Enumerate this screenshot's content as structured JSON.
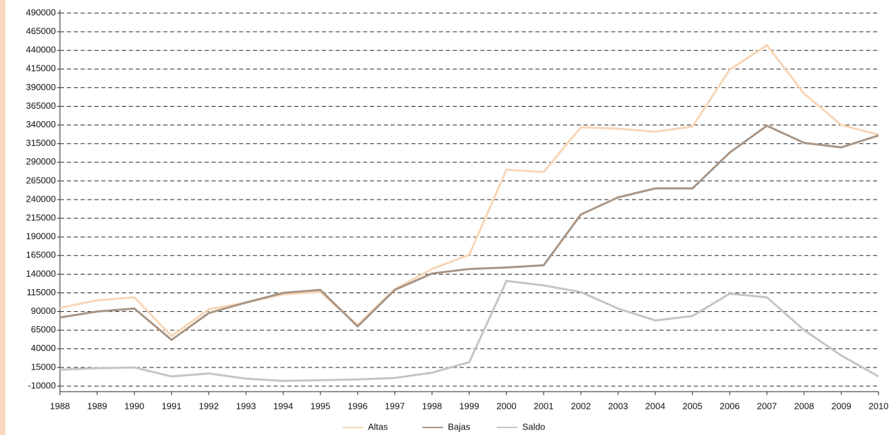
{
  "chart_data": {
    "type": "line",
    "x": [
      1988,
      1989,
      1990,
      1991,
      1992,
      1993,
      1994,
      1995,
      1996,
      1997,
      1998,
      1999,
      2000,
      2001,
      2002,
      2003,
      2004,
      2005,
      2006,
      2007,
      2008,
      2009,
      2010
    ],
    "xlim": [
      1988,
      2010
    ],
    "xticks": [
      1988,
      1989,
      1990,
      1991,
      1992,
      1993,
      1994,
      1995,
      1996,
      1997,
      1998,
      1999,
      2000,
      2001,
      2002,
      2003,
      2004,
      2005,
      2006,
      2007,
      2008,
      2009,
      2010
    ],
    "ylim": [
      -10000,
      490000
    ],
    "yticks": [
      -10000,
      15000,
      40000,
      65000,
      90000,
      115000,
      140000,
      165000,
      190000,
      215000,
      240000,
      265000,
      290000,
      315000,
      340000,
      365000,
      390000,
      415000,
      440000,
      465000,
      490000
    ],
    "grid": true,
    "legend": "bottom",
    "series": [
      {
        "name": "Altas",
        "color": "#f8d5b5",
        "values": [
          95000,
          105000,
          109000,
          57000,
          93000,
          102000,
          113000,
          116000,
          72000,
          120000,
          147000,
          166000,
          280000,
          277000,
          337000,
          335000,
          331000,
          338000,
          414000,
          447000,
          382000,
          340000,
          327000
        ]
      },
      {
        "name": "Bajas",
        "color": "#a89484",
        "values": [
          82000,
          90000,
          94000,
          52000,
          88000,
          102000,
          115000,
          119000,
          70000,
          119000,
          141000,
          147000,
          149000,
          152000,
          220000,
          243000,
          255000,
          255000,
          303000,
          339000,
          316000,
          310000,
          326000
        ]
      },
      {
        "name": "Saldo",
        "color": "#c4c4c4",
        "values": [
          12000,
          14000,
          15000,
          3000,
          7000,
          0,
          -3000,
          -2000,
          -1000,
          1000,
          8000,
          22000,
          131000,
          125000,
          116000,
          94000,
          78000,
          84000,
          114000,
          109000,
          65000,
          31000,
          3000
        ]
      }
    ]
  }
}
